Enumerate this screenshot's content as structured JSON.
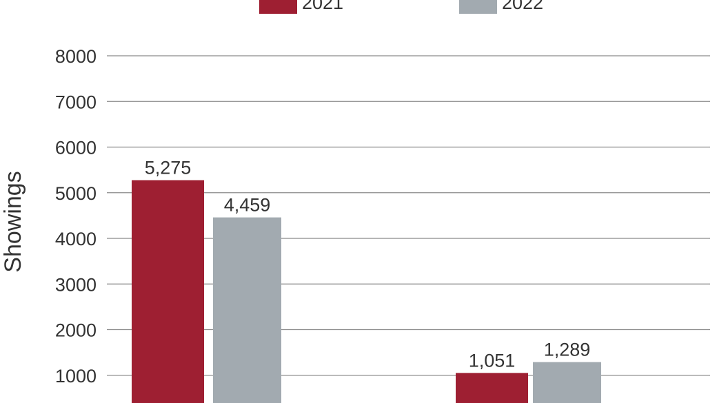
{
  "chart_data": {
    "type": "bar",
    "ylabel": "Showings",
    "ylim": [
      0,
      8000
    ],
    "yticks": [
      1000,
      2000,
      3000,
      4000,
      5000,
      6000,
      7000,
      8000
    ],
    "grid": true,
    "legend_position": "top",
    "series": [
      {
        "name": "2021",
        "color": "#9e1f32",
        "values": [
          5275,
          1051
        ],
        "labels": [
          "5,275",
          "1,051"
        ]
      },
      {
        "name": "2022",
        "color": "#a2aab0",
        "values": [
          4459,
          1289
        ],
        "labels": [
          "4,459",
          "1,289"
        ]
      }
    ]
  }
}
